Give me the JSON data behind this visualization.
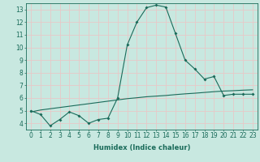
{
  "xlabel": "Humidex (Indice chaleur)",
  "ylabel": "",
  "bg_color": "#c8e8e0",
  "grid_color": "#e8c8c8",
  "line_color": "#1a6b5a",
  "xlim": [
    -0.5,
    23.5
  ],
  "ylim": [
    3.5,
    13.5
  ],
  "xticks": [
    0,
    1,
    2,
    3,
    4,
    5,
    6,
    7,
    8,
    9,
    10,
    11,
    12,
    13,
    14,
    15,
    16,
    17,
    18,
    19,
    20,
    21,
    22,
    23
  ],
  "yticks": [
    4,
    5,
    6,
    7,
    8,
    9,
    10,
    11,
    12,
    13
  ],
  "line1_x": [
    0,
    1,
    2,
    3,
    4,
    5,
    6,
    7,
    8,
    9,
    10,
    11,
    12,
    13,
    14,
    15,
    16,
    17,
    18,
    19,
    20,
    21,
    22,
    23
  ],
  "line1_y": [
    5.0,
    4.7,
    3.8,
    4.3,
    4.9,
    4.6,
    4.0,
    4.3,
    4.4,
    6.0,
    10.2,
    12.0,
    13.15,
    13.35,
    13.2,
    11.1,
    9.0,
    8.3,
    7.5,
    7.7,
    6.2,
    6.3,
    6.3,
    6.3
  ],
  "line2_x": [
    0,
    1,
    2,
    3,
    4,
    5,
    6,
    7,
    8,
    9,
    10,
    11,
    12,
    13,
    14,
    15,
    16,
    17,
    18,
    19,
    20,
    21,
    22,
    23
  ],
  "line2_y": [
    4.9,
    5.05,
    5.15,
    5.25,
    5.35,
    5.45,
    5.55,
    5.65,
    5.75,
    5.85,
    5.95,
    6.02,
    6.1,
    6.15,
    6.2,
    6.27,
    6.33,
    6.38,
    6.44,
    6.5,
    6.55,
    6.58,
    6.62,
    6.65
  ]
}
